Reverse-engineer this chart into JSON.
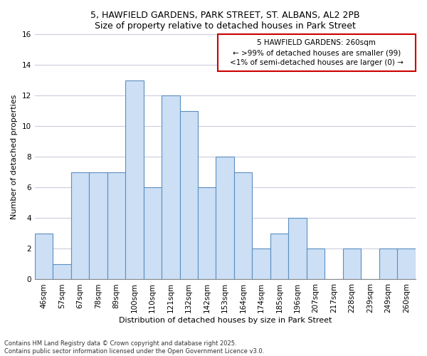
{
  "title_line1": "5, HAWFIELD GARDENS, PARK STREET, ST. ALBANS, AL2 2PB",
  "title_line2": "Size of property relative to detached houses in Park Street",
  "xlabel": "Distribution of detached houses by size in Park Street",
  "ylabel": "Number of detached properties",
  "bin_labels": [
    "46sqm",
    "57sqm",
    "67sqm",
    "78sqm",
    "89sqm",
    "100sqm",
    "110sqm",
    "121sqm",
    "132sqm",
    "142sqm",
    "153sqm",
    "164sqm",
    "174sqm",
    "185sqm",
    "196sqm",
    "207sqm",
    "217sqm",
    "228sqm",
    "239sqm",
    "249sqm",
    "260sqm"
  ],
  "values": [
    3,
    1,
    7,
    7,
    7,
    13,
    6,
    12,
    11,
    6,
    8,
    7,
    2,
    3,
    4,
    2,
    0,
    2,
    0,
    2,
    2
  ],
  "bar_color": "#ccdff5",
  "bar_edge_color": "#5a8fc0",
  "ylim": [
    0,
    16
  ],
  "yticks": [
    0,
    2,
    4,
    6,
    8,
    10,
    12,
    14,
    16
  ],
  "annotation_box_edge_color": "#cc0000",
  "annotation_text_line1": "5 HAWFIELD GARDENS: 260sqm",
  "annotation_text_line2": "← >99% of detached houses are smaller (99)",
  "annotation_text_line3": "<1% of semi-detached houses are larger (0) →",
  "footnote_line1": "Contains HM Land Registry data © Crown copyright and database right 2025.",
  "footnote_line2": "Contains public sector information licensed under the Open Government Licence v3.0.",
  "background_color": "#ffffff",
  "grid_color": "#ccccdd",
  "title_fontsize": 9,
  "axis_label_fontsize": 8,
  "tick_fontsize": 7.5,
  "annotation_fontsize": 7.5,
  "footnote_fontsize": 6
}
